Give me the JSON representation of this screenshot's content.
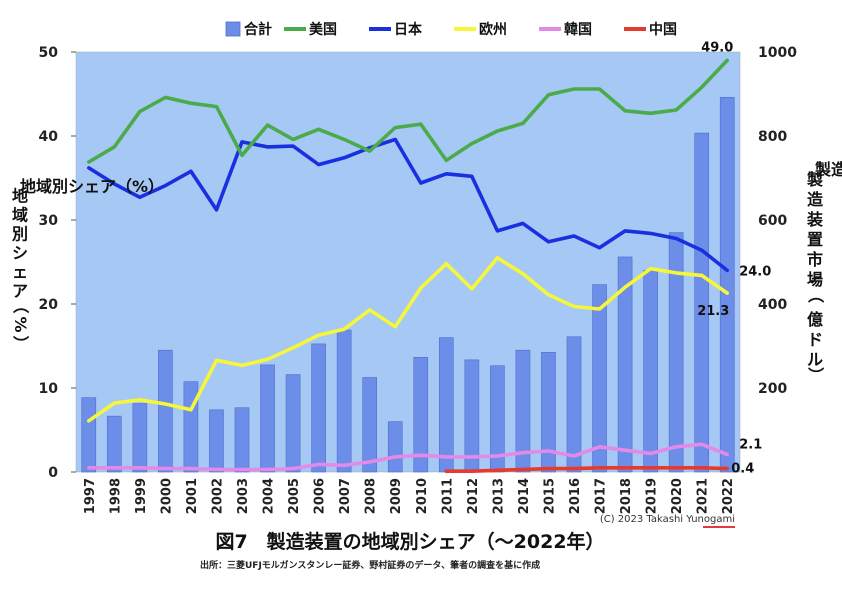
{
  "chart_data": {
    "type": "bar+line",
    "title": "図7　製造装置の地域別シェア（〜2022年）",
    "source": "出所：三菱UFJモルガンスタンレー証券、野村証券のデータ、筆者の調査を基に作成",
    "copyright": "(C) 2023 Takashi Yunogami",
    "ylabel_left": "地域別シェア（%）",
    "ylabel_right": "製造装置市場（億ドル）",
    "ylim_left": [
      0,
      50
    ],
    "ylim_right": [
      0,
      1000
    ],
    "yticks_left": [
      "0",
      "10",
      "20",
      "30",
      "40",
      "50"
    ],
    "yticks_right": [
      "200",
      "400",
      "600",
      "800",
      "1000"
    ],
    "categories": [
      "1997",
      "1998",
      "1999",
      "2000",
      "2001",
      "2002",
      "2003",
      "2004",
      "2005",
      "2006",
      "2007",
      "2008",
      "2009",
      "2010",
      "2011",
      "2012",
      "2013",
      "2014",
      "2015",
      "2016",
      "2017",
      "2018",
      "2019",
      "2020",
      "2021",
      "2022"
    ],
    "bars": {
      "name": "合計",
      "color": "#6c8ee8",
      "values": [
        177,
        133,
        163,
        290,
        215,
        148,
        153,
        255,
        232,
        305,
        338,
        225,
        120,
        273,
        320,
        267,
        253,
        290,
        285,
        322,
        446,
        512,
        480,
        570,
        807,
        892
      ]
    },
    "series": [
      {
        "name": "美国",
        "color": "#4bab4b",
        "values": [
          36.9,
          38.7,
          42.9,
          44.6,
          43.9,
          43.5,
          37.7,
          41.3,
          39.6,
          40.8,
          39.6,
          38.2,
          41.0,
          41.4,
          37.1,
          39.1,
          40.6,
          41.5,
          44.9,
          45.6,
          45.6,
          43.0,
          42.7,
          43.1,
          45.8,
          49.0
        ]
      },
      {
        "name": "日本",
        "color": "#1a2fe0",
        "values": [
          36.2,
          34.3,
          32.7,
          34.1,
          35.8,
          31.2,
          39.3,
          38.7,
          38.8,
          36.6,
          37.4,
          38.6,
          39.6,
          34.4,
          35.5,
          35.2,
          28.7,
          29.6,
          27.4,
          28.1,
          26.7,
          28.7,
          28.4,
          27.8,
          26.4,
          24.0
        ]
      },
      {
        "name": "欧州",
        "color": "#f6f63a",
        "values": [
          6.1,
          8.2,
          8.6,
          8.1,
          7.4,
          13.3,
          12.7,
          13.4,
          14.8,
          16.3,
          17.0,
          19.3,
          17.3,
          21.9,
          24.8,
          21.8,
          25.5,
          23.6,
          21.1,
          19.7,
          19.4,
          22.0,
          24.2,
          23.7,
          23.4,
          21.3
        ]
      },
      {
        "name": "韓国",
        "color": "#e38ae8",
        "values": [
          0.5,
          0.5,
          0.5,
          0.4,
          0.4,
          0.3,
          0.3,
          0.3,
          0.4,
          0.9,
          0.8,
          1.2,
          1.8,
          2.0,
          1.8,
          1.8,
          1.9,
          2.3,
          2.5,
          1.9,
          3.0,
          2.6,
          2.2,
          3.0,
          3.3,
          2.1
        ]
      },
      {
        "name": "中国",
        "color": "#e53a2e",
        "values": [
          null,
          null,
          null,
          null,
          null,
          null,
          null,
          null,
          null,
          null,
          null,
          null,
          null,
          null,
          0.1,
          0.1,
          0.2,
          0.3,
          0.4,
          0.4,
          0.5,
          0.5,
          0.5,
          0.5,
          0.5,
          0.4
        ]
      }
    ],
    "end_labels": [
      {
        "series": "美国",
        "text": "49.0"
      },
      {
        "series": "日本",
        "text": "24.0"
      },
      {
        "series": "欧州",
        "text": "21.3"
      },
      {
        "series": "韓国",
        "text": "2.1"
      },
      {
        "series": "中国",
        "text": "0.4"
      }
    ],
    "plot_background": "#a6c8f4",
    "legend_position": "top"
  }
}
